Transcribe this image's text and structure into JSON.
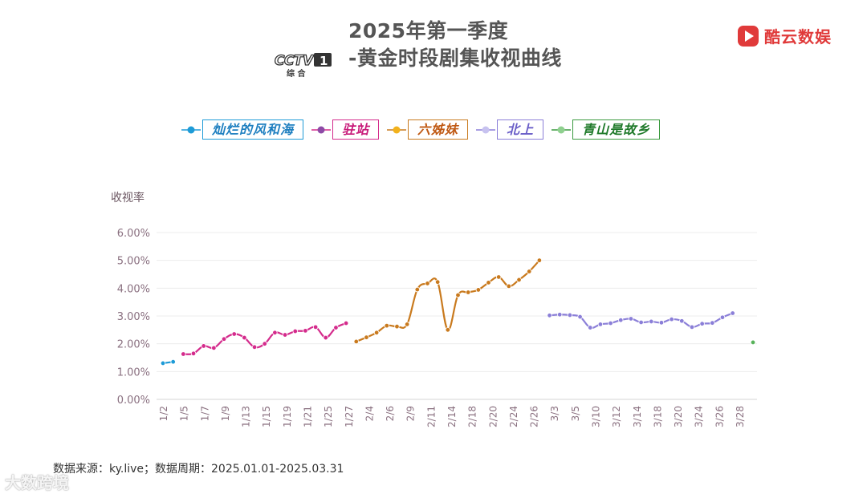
{
  "header": {
    "title_line1": "2025年第一季度",
    "title_line2": "-黄金时段剧集收视曲线",
    "channel_logo_text": "CCTV",
    "channel_number": "1",
    "channel_sub": "综 合",
    "brand_name": "酷云数娱",
    "brand_color": "#e03a3a"
  },
  "chart_data": {
    "type": "line",
    "ylabel": "收视率",
    "ylim": [
      0,
      6
    ],
    "y_ticks": [
      "0.00%",
      "1.00%",
      "2.00%",
      "3.00%",
      "4.00%",
      "5.00%",
      "6.00%"
    ],
    "grid": true,
    "legend": "top",
    "x_tick_labels": [
      "1/2",
      "1/5",
      "1/7",
      "1/9",
      "1/13",
      "1/15",
      "1/19",
      "1/21",
      "1/25",
      "1/27",
      "2/4",
      "2/6",
      "2/9",
      "2/11",
      "2/14",
      "2/18",
      "2/20",
      "2/24",
      "2/26",
      "3/3",
      "3/5",
      "3/10",
      "3/12",
      "3/14",
      "3/18",
      "3/20",
      "3/24",
      "3/26",
      "3/28"
    ],
    "series": [
      {
        "name": "灿烂的风和海",
        "color": "#1e9bd7",
        "start": 0,
        "values": [
          1.3,
          1.35
        ]
      },
      {
        "name": "驻站",
        "color": "#d42b8c",
        "start": 2,
        "values": [
          1.63,
          1.65,
          1.92,
          1.85,
          2.17,
          2.35,
          2.22,
          1.88,
          2.0,
          2.4,
          2.32,
          2.45,
          2.47,
          2.6,
          2.22,
          2.58,
          2.74
        ]
      },
      {
        "name": "六姊妹",
        "color": "#c97a1e",
        "start": 19,
        "values": [
          2.08,
          2.23,
          2.4,
          2.65,
          2.62,
          2.7,
          3.95,
          4.17,
          4.22,
          2.5,
          3.75,
          3.85,
          3.94,
          4.2,
          4.4,
          4.07,
          4.3,
          4.6,
          5.0
        ]
      },
      {
        "name": "北上",
        "color": "#8b7fd8",
        "start": 38,
        "values": [
          3.02,
          3.05,
          3.03,
          2.97,
          2.58,
          2.7,
          2.74,
          2.85,
          2.9,
          2.77,
          2.8,
          2.76,
          2.88,
          2.82,
          2.6,
          2.72,
          2.75,
          2.95,
          3.1
        ]
      },
      {
        "name": "青山是故乡",
        "color": "#57b25a",
        "start": 58,
        "values": [
          2.05
        ]
      }
    ]
  },
  "legend_styles": [
    {
      "border": "#1e9bd7",
      "text": "#1e7fc0",
      "dot": "#1e9bd7"
    },
    {
      "border": "#d42b8c",
      "text": "#c81a7a",
      "dot": "#8d4aa6"
    },
    {
      "border": "#c97a1e",
      "text": "#c05a14",
      "dot": "#f2b21c"
    },
    {
      "border": "#8b7fd8",
      "text": "#6a5ec8",
      "dot": "#c7c2ef"
    },
    {
      "border": "#3a9a3e",
      "text": "#1f7a2a",
      "dot": "#8fd08f"
    }
  ],
  "footer": {
    "source": "数据来源：ky.live；数据周期：2025.01.01-2025.03.31",
    "watermark": "大数跨境"
  }
}
